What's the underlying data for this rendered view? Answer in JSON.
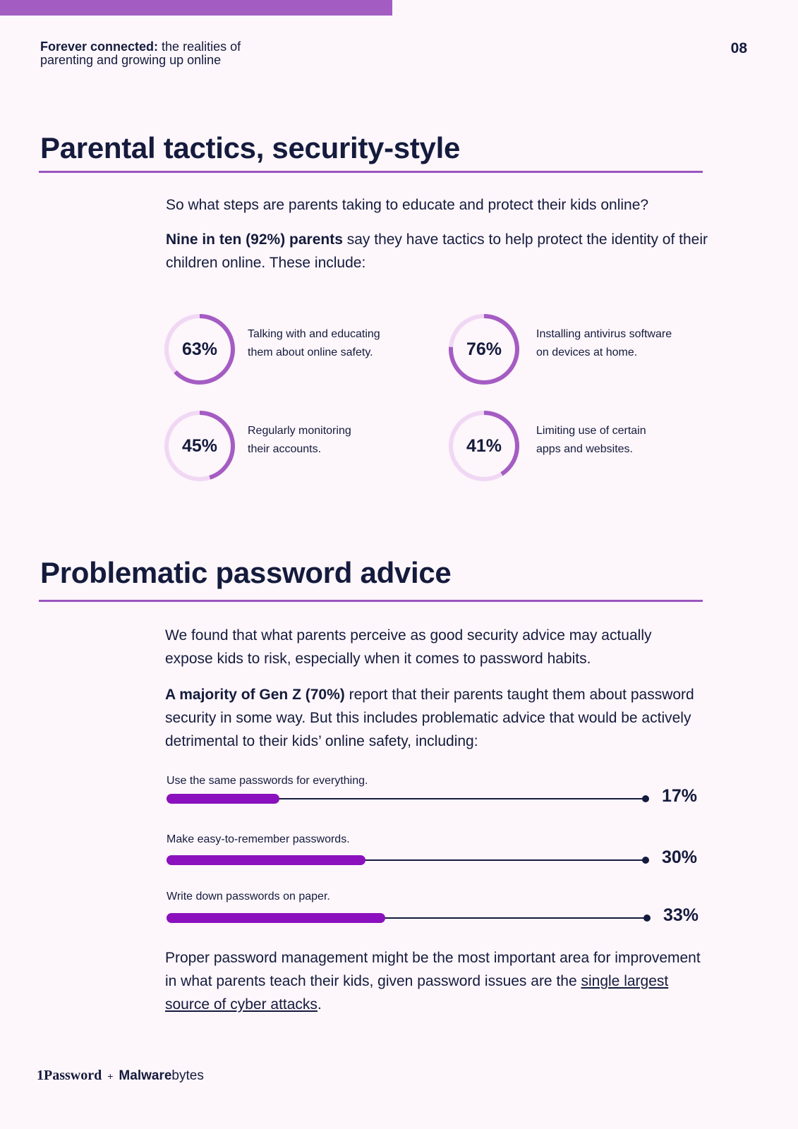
{
  "header": {
    "title_bold": "Forever connected:",
    "title_rest": " the realities of",
    "title_line2": "parenting and growing up online",
    "page_number": "08"
  },
  "section1": {
    "title": "Parental tactics, security-style",
    "intro": "So what steps are parents taking to educate and protect their kids online?",
    "lead_bold": "Nine in ten (92%) parents",
    "lead_rest": " say they have tactics to help protect the identity of their children online. These include:",
    "stats": [
      {
        "percent_label": "63%",
        "value": 0.63,
        "line1": "Talking with and educating",
        "line2": "them about online safety."
      },
      {
        "percent_label": "76%",
        "value": 0.76,
        "line1": "Installing antivirus software",
        "line2": "on devices at home."
      },
      {
        "percent_label": "45%",
        "value": 0.45,
        "line1": "Regularly monitoring",
        "line2": "their accounts."
      },
      {
        "percent_label": "41%",
        "value": 0.41,
        "line1": "Limiting use of certain",
        "line2": "apps and websites."
      }
    ]
  },
  "section2": {
    "title": "Problematic password advice",
    "para1": "We found that what parents perceive as good security advice may actually expose kids to risk, especially when it comes to password habits.",
    "para2_bold": "A majority of Gen Z (70%)",
    "para2_rest": " report that their parents taught them about password security in some way. But this includes problematic advice that would be actively detrimental to their kids’ online safety, including:",
    "bars": [
      {
        "label": "Use the same passwords for everything.",
        "value_label": "17%",
        "value": 0.17
      },
      {
        "label": "Make easy-to-remember passwords.",
        "value_label": "30%",
        "value": 0.3
      },
      {
        "label": "Write down passwords on paper.",
        "value_label": "33%",
        "value": 0.33
      }
    ],
    "closing_text": "Proper password management might be the most important area for improvement in what parents teach their kids, given password issues are the ",
    "closing_link": "single largest source of cyber attacks",
    "closing_end": "."
  },
  "footer": {
    "brand1": "1Password",
    "plus": "+",
    "brand2_bold": "Malware",
    "brand2_rest": "bytes"
  },
  "colors": {
    "accent_purple": "#a25cc2",
    "ring_light": "#f0d8f4",
    "ring_dark": "#a45cc3",
    "bar_fill": "#8a11bd",
    "text_navy": "#141b3c"
  }
}
